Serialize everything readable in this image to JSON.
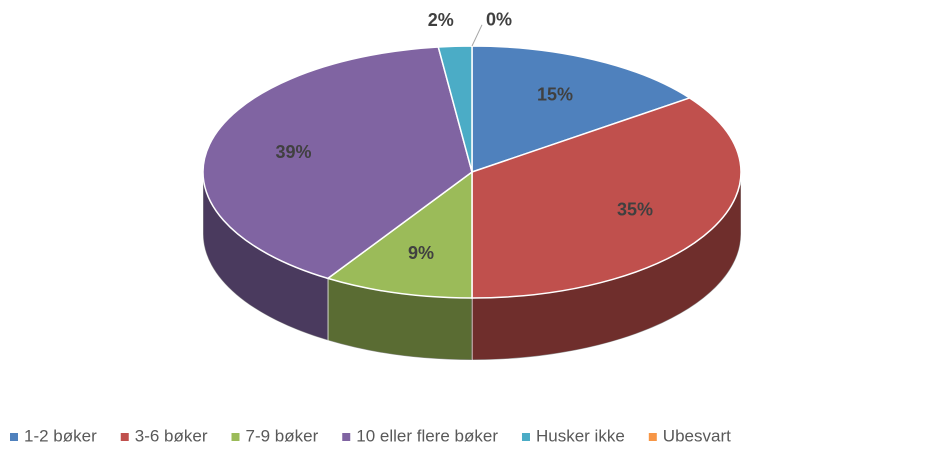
{
  "chart_data": {
    "type": "pie3d",
    "categories": [
      "1-2 bøker",
      "3-6 bøker",
      "7-9 bøker",
      "10 eller flere bøker",
      "Husker ikke",
      "Ubesvart"
    ],
    "values": [
      15,
      35,
      9,
      39,
      2,
      0
    ],
    "value_labels": [
      "15%",
      "35%",
      "9%",
      "39%",
      "2%",
      "0%"
    ],
    "colors": [
      "#4f81bd",
      "#c0504d",
      "#9bbb59",
      "#8064a2",
      "#4bacc6",
      "#f79646"
    ],
    "legend": "bottom"
  }
}
